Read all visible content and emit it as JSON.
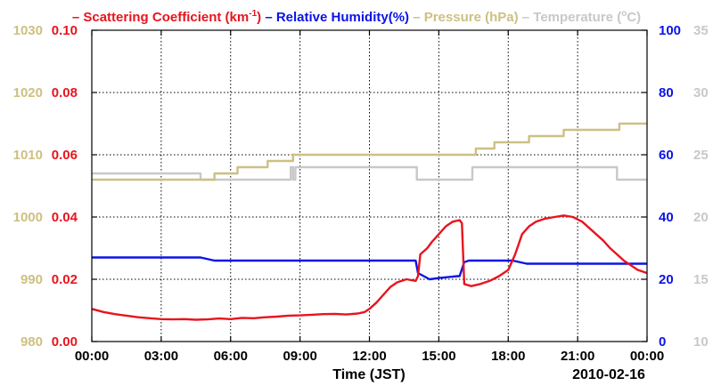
{
  "chart_data": {
    "type": "line",
    "title_parts": [
      {
        "text": "– Scattering Coefficient (km",
        "sup": "-1",
        "tail": ")",
        "color": "#e8141e"
      },
      {
        "text": "– Relative Humidity(%)",
        "color": "#0a14e6"
      },
      {
        "text": "– Pressure (hPa)",
        "color": "#cdc082"
      },
      {
        "text": "– Temperature (",
        "sup": "o",
        "tail": "C)",
        "color": "#c8c8c8"
      }
    ],
    "xlabel": "Time (JST)",
    "date_label": "2010-02-16",
    "xlim": [
      0,
      24
    ],
    "x_ticks": [
      0,
      3,
      6,
      9,
      12,
      15,
      18,
      21,
      24
    ],
    "x_tick_labels": [
      "00:00",
      "03:00",
      "06:00",
      "09:00",
      "12:00",
      "15:00",
      "18:00",
      "21:00",
      "00:00"
    ],
    "grid": true,
    "axes": {
      "scattering": {
        "color": "#e8141e",
        "ylim": [
          0,
          0.1
        ],
        "ticks": [
          "0.00",
          "0.02",
          "0.04",
          "0.06",
          "0.08",
          "0.10"
        ]
      },
      "humidity": {
        "color": "#0a14e6",
        "ylim": [
          0,
          100
        ],
        "ticks": [
          "0",
          "20",
          "40",
          "60",
          "80",
          "100"
        ]
      },
      "pressure": {
        "color": "#cdc082",
        "ylim": [
          980,
          1030
        ],
        "ticks": [
          "980",
          "990",
          "1000",
          "1010",
          "1020",
          "1030"
        ]
      },
      "temperature": {
        "color": "#c8c8c8",
        "ylim": [
          10,
          35
        ],
        "ticks": [
          "10",
          "15",
          "20",
          "25",
          "30",
          "35"
        ]
      }
    },
    "series": [
      {
        "key": "temperature",
        "axis": "temperature",
        "color": "#c8c8c8",
        "step": true,
        "x": [
          0,
          4.7,
          8.6,
          8.7,
          8.8,
          14.05,
          16.45,
          22.7,
          24
        ],
        "y": [
          23.5,
          23,
          24,
          23,
          24,
          23,
          24,
          23,
          23
        ]
      },
      {
        "key": "pressure",
        "axis": "pressure",
        "color": "#cdc082",
        "step": true,
        "x": [
          0,
          4.7,
          5.3,
          5.6,
          6.3,
          6.7,
          7.6,
          8.5,
          8.7,
          9.1,
          13.6,
          14.1,
          16.6,
          17.4,
          18.9,
          20.4,
          21.9,
          22.8,
          24
        ],
        "y": [
          1006,
          1006,
          1007,
          1007,
          1008,
          1008,
          1009,
          1009,
          1010,
          1010,
          1010,
          1010,
          1011,
          1012,
          1013,
          1014,
          1014,
          1015,
          1015
        ]
      },
      {
        "key": "humidity",
        "axis": "humidity",
        "color": "#0a14e6",
        "x": [
          0,
          4.7,
          5.3,
          14.0,
          14.1,
          14.6,
          15.1,
          15.8,
          15.9,
          16.1,
          16.3,
          18.2,
          18.8,
          24
        ],
        "y": [
          27,
          27,
          26,
          26,
          22,
          20,
          20.5,
          21,
          21,
          25.5,
          26,
          26,
          25,
          25
        ]
      },
      {
        "key": "scattering",
        "axis": "scattering",
        "color": "#e8141e",
        "x": [
          0,
          0.5,
          1,
          1.5,
          2,
          2.5,
          3,
          3.5,
          4,
          4.5,
          5,
          5.5,
          6,
          6.5,
          7,
          7.5,
          8,
          8.5,
          9,
          9.5,
          10,
          10.5,
          11,
          11.5,
          11.8,
          12,
          12.3,
          12.6,
          12.9,
          13.2,
          13.6,
          14.0,
          14.1,
          14.2,
          14.5,
          14.7,
          15.0,
          15.3,
          15.6,
          15.9,
          16.0,
          16.1,
          16.4,
          16.8,
          17.2,
          17.6,
          18.0,
          18.3,
          18.6,
          18.9,
          19.2,
          19.6,
          20.0,
          20.4,
          20.8,
          21.2,
          21.5,
          21.8,
          22.1,
          22.4,
          22.7,
          23.0,
          23.3,
          23.6,
          24
        ],
        "y": [
          0.0105,
          0.0095,
          0.0088,
          0.0083,
          0.0078,
          0.0075,
          0.0072,
          0.0071,
          0.0072,
          0.007,
          0.0071,
          0.0074,
          0.0072,
          0.0076,
          0.0075,
          0.0078,
          0.008,
          0.0083,
          0.0084,
          0.0086,
          0.0088,
          0.0089,
          0.0087,
          0.009,
          0.0095,
          0.0105,
          0.0125,
          0.015,
          0.0175,
          0.019,
          0.02,
          0.0195,
          0.021,
          0.028,
          0.03,
          0.032,
          0.0345,
          0.037,
          0.0385,
          0.039,
          0.038,
          0.0185,
          0.0178,
          0.0185,
          0.0195,
          0.021,
          0.023,
          0.028,
          0.0345,
          0.037,
          0.0385,
          0.0395,
          0.04,
          0.0405,
          0.04,
          0.0385,
          0.0365,
          0.0345,
          0.0325,
          0.03,
          0.028,
          0.026,
          0.0245,
          0.023,
          0.022
        ]
      }
    ]
  }
}
